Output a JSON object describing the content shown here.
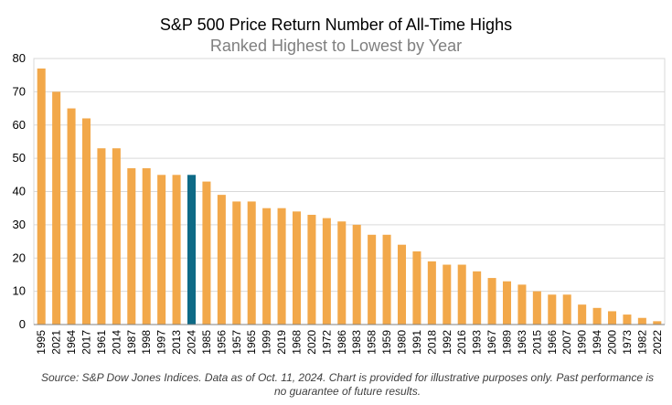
{
  "chart_data": {
    "type": "bar",
    "title": "S&P 500 Price Return Number of All-Time Highs",
    "subtitle": "Ranked Highest to Lowest by Year",
    "categories": [
      "1995",
      "2021",
      "1964",
      "2017",
      "1961",
      "2014",
      "1987",
      "1998",
      "1997",
      "2013",
      "2024",
      "1985",
      "1956",
      "1957",
      "1965",
      "1999",
      "2019",
      "1968",
      "2020",
      "1972",
      "1986",
      "1983",
      "1958",
      "1959",
      "1980",
      "1991",
      "2018",
      "1992",
      "2016",
      "1993",
      "1967",
      "1989",
      "1963",
      "2015",
      "1966",
      "2007",
      "1990",
      "1994",
      "2000",
      "1973",
      "1982",
      "2022"
    ],
    "values": [
      77,
      70,
      65,
      62,
      53,
      53,
      47,
      47,
      45,
      45,
      45,
      43,
      39,
      37,
      37,
      35,
      35,
      34,
      33,
      32,
      31,
      30,
      27,
      27,
      24,
      22,
      19,
      18,
      18,
      16,
      14,
      13,
      12,
      10,
      9,
      9,
      6,
      5,
      4,
      3,
      2,
      1
    ],
    "highlight_category": "2024",
    "colors": {
      "bar": "#F2A84A",
      "highlight": "#0E6A86",
      "grid": "#D9D9D9",
      "axis": "#808080"
    },
    "ylim": [
      0,
      80
    ],
    "yticks": [
      0,
      10,
      20,
      30,
      40,
      50,
      60,
      70,
      80
    ],
    "grid": true,
    "legend": "none",
    "xlabel": "",
    "ylabel": ""
  },
  "source_note": "Source: S&P Dow Jones Indices. Data as of Oct. 11, 2024. Chart is provided for illustrative purposes only.  Past performance is no guarantee of future results."
}
